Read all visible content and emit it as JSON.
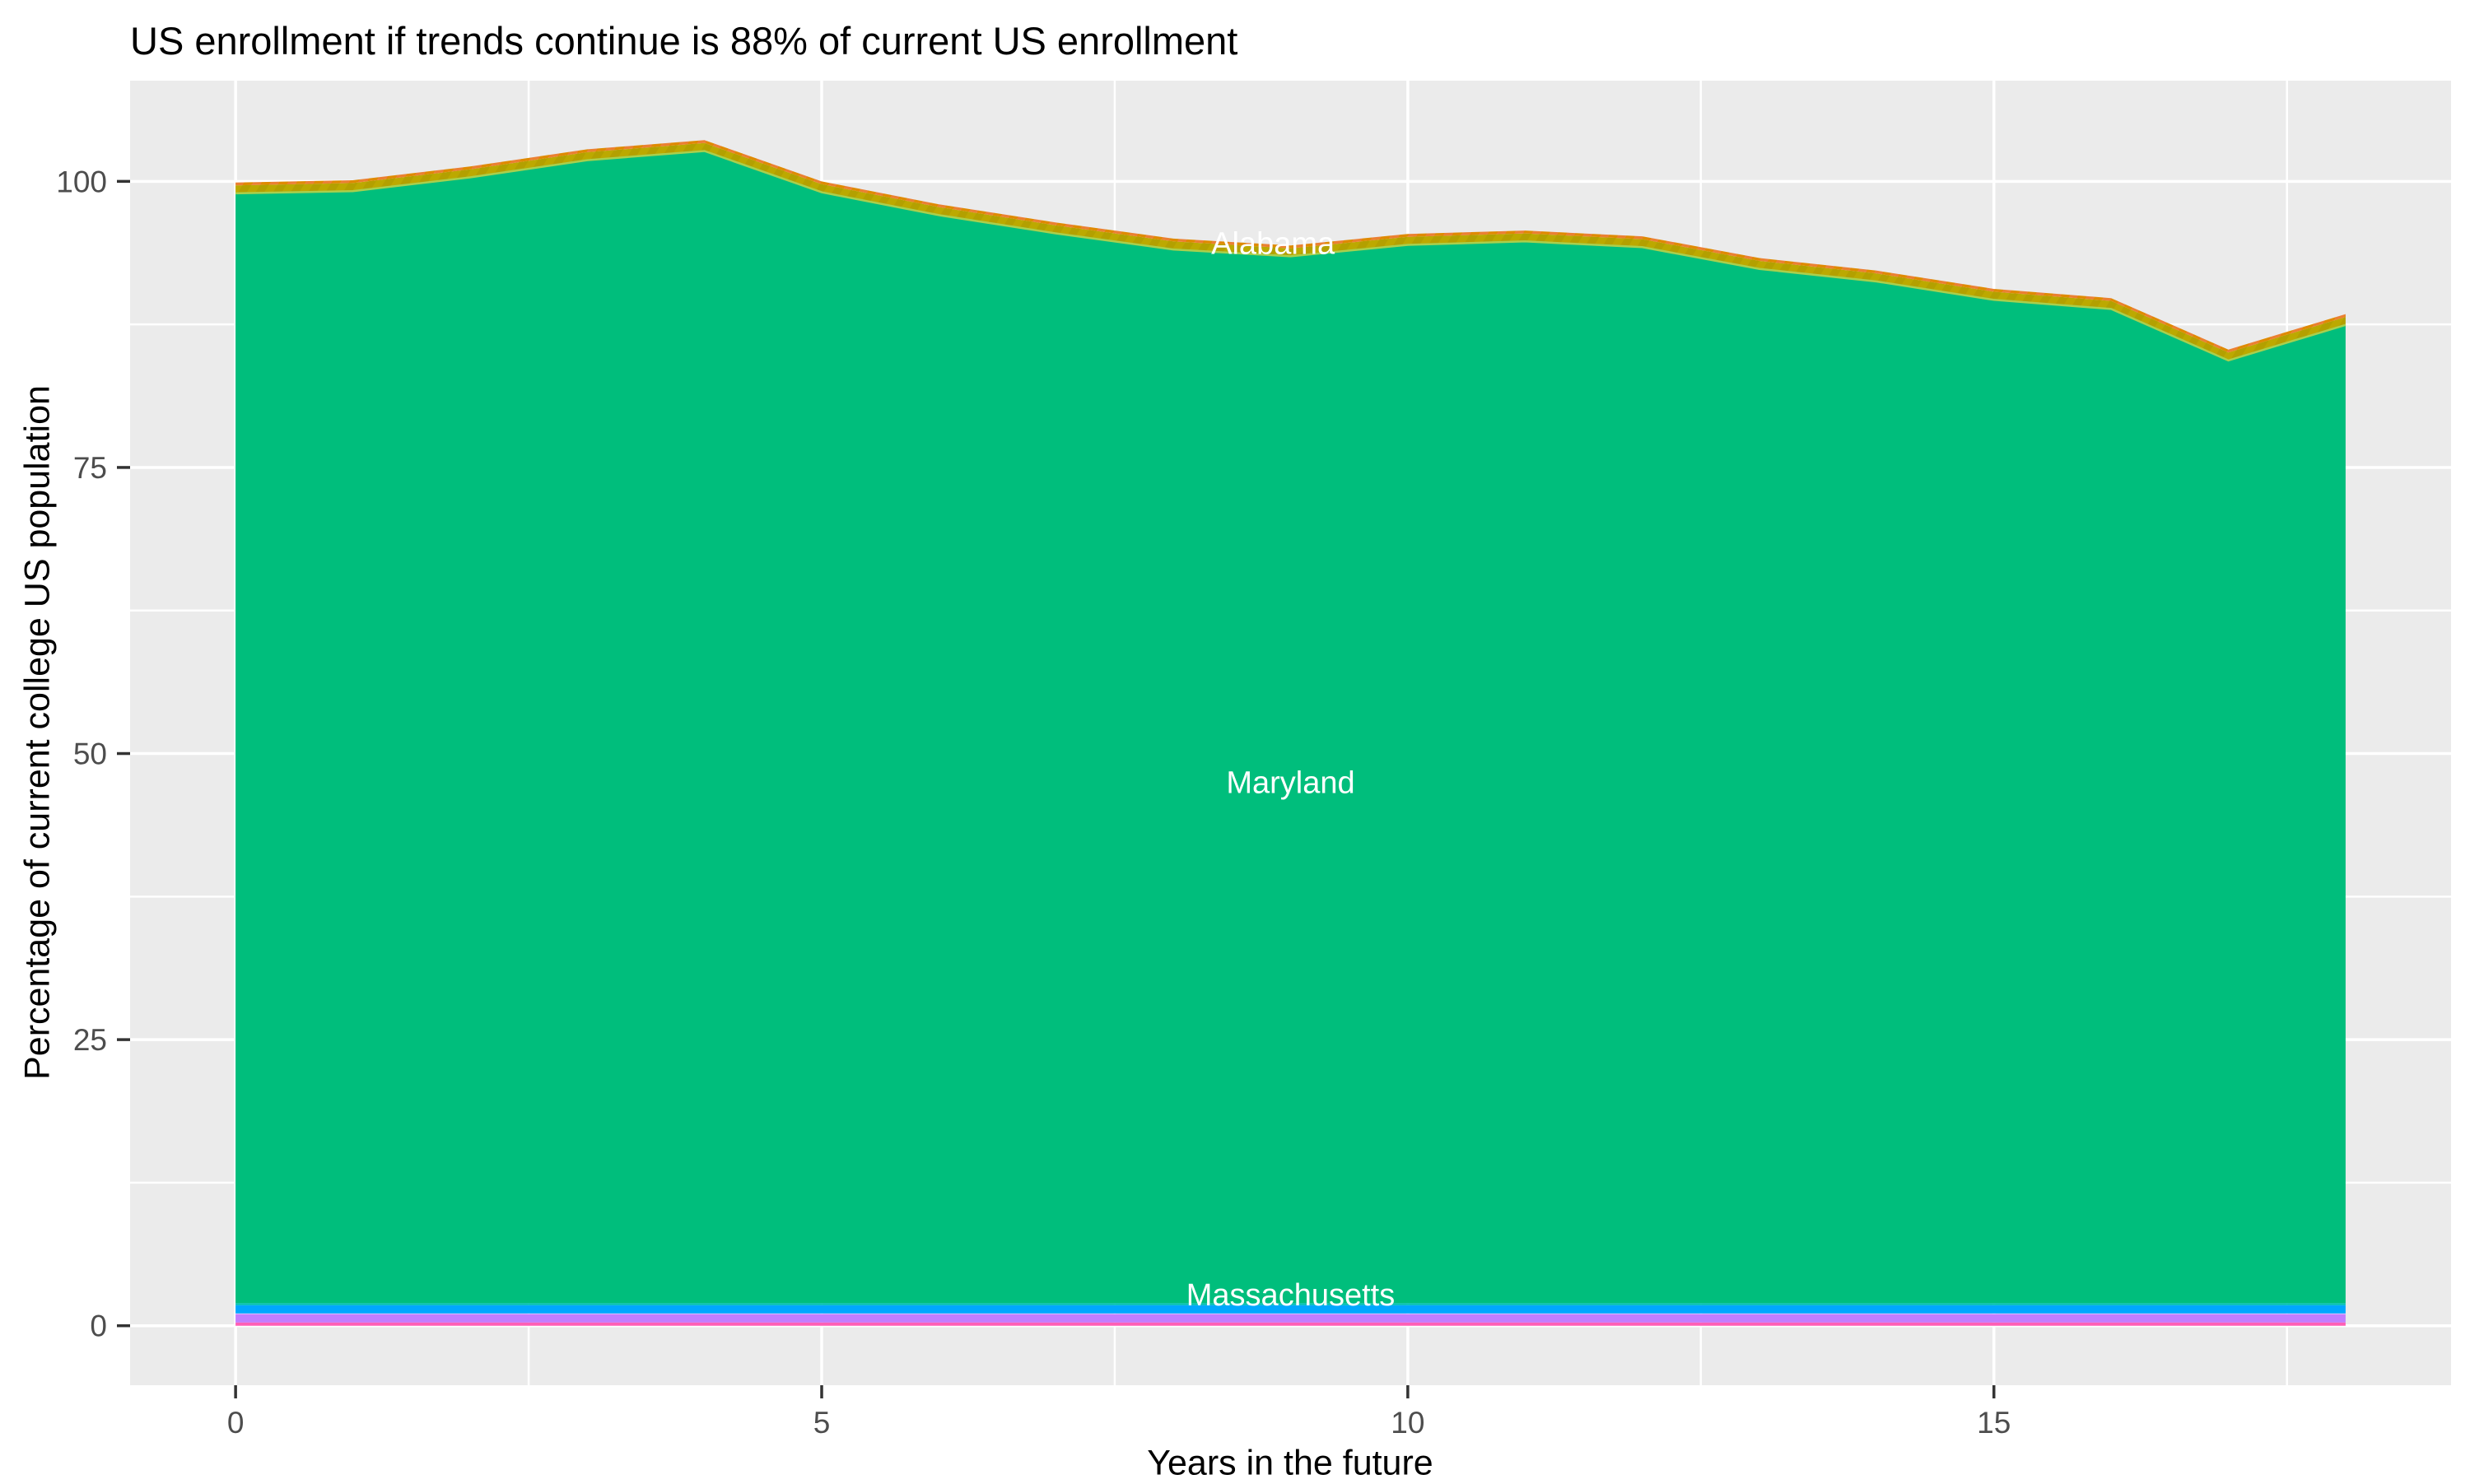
{
  "title": "US enrollment if trends continue is 88% of current US enrollment",
  "axes": {
    "x": {
      "label": "Years in the future",
      "tick_labels": [
        "0",
        "5",
        "10",
        "15"
      ]
    },
    "y": {
      "label": "Percentage of current college US population",
      "tick_labels": [
        "0",
        "25",
        "50",
        "75",
        "100"
      ]
    }
  },
  "colors": {
    "panel_background": "#EBEBEB",
    "gridline": "#FFFFFF",
    "tick_text": "#4D4D4D",
    "tick_mark": "#333333",
    "title_text": "#000000",
    "area_label_text": "#FFFFFF"
  },
  "chart_data": {
    "type": "area",
    "stacked": true,
    "title": "US enrollment if trends continue is 88% of current US enrollment",
    "xlabel": "Years in the future",
    "ylabel": "Percentage of current college US population",
    "x": [
      0,
      1,
      2,
      3,
      4,
      5,
      6,
      7,
      8,
      9,
      10,
      11,
      12,
      13,
      14,
      15,
      16,
      17,
      18
    ],
    "xlim": [
      -0.9,
      18.9
    ],
    "ylim": [
      -5.2,
      108.8
    ],
    "x_ticks": [
      0,
      5,
      10,
      15
    ],
    "y_ticks": [
      0,
      25,
      50,
      75,
      100
    ],
    "x_minor": [
      2.5,
      7.5,
      12.5,
      17.5
    ],
    "y_minor": [
      12.5,
      37.5,
      62.5,
      87.5
    ],
    "grid": true,
    "legend": false,
    "total_top_edge": [
      99.9,
      100.1,
      101.3,
      102.8,
      103.6,
      100.0,
      98.0,
      96.4,
      95.0,
      94.4,
      95.4,
      95.7,
      95.2,
      93.3,
      92.2,
      90.6,
      89.8,
      85.3,
      88.4
    ],
    "series": [
      {
        "name": "pink-band",
        "color": "#FF5FB5",
        "values": [
          0.28,
          0.28,
          0.28,
          0.28,
          0.28,
          0.28,
          0.28,
          0.28,
          0.28,
          0.28,
          0.28,
          0.28,
          0.28,
          0.28,
          0.28,
          0.28,
          0.28,
          0.28,
          0.28
        ]
      },
      {
        "name": "purple-band",
        "color": "#C17DFF",
        "values": [
          0.72,
          0.72,
          0.72,
          0.72,
          0.72,
          0.72,
          0.72,
          0.72,
          0.72,
          0.72,
          0.72,
          0.72,
          0.72,
          0.72,
          0.72,
          0.72,
          0.72,
          0.72,
          0.72
        ]
      },
      {
        "name": "lavender-line-band",
        "color": "#DCB0FF",
        "values": [
          0.08,
          0.08,
          0.08,
          0.08,
          0.08,
          0.08,
          0.08,
          0.08,
          0.08,
          0.08,
          0.08,
          0.08,
          0.08,
          0.08,
          0.08,
          0.08,
          0.08,
          0.08,
          0.08
        ]
      },
      {
        "name": "blue-band",
        "color": "#00A7FF",
        "values": [
          0.72,
          0.72,
          0.72,
          0.72,
          0.72,
          0.72,
          0.72,
          0.72,
          0.72,
          0.72,
          0.72,
          0.72,
          0.72,
          0.72,
          0.72,
          0.72,
          0.72,
          0.72,
          0.72
        ]
      },
      {
        "name": "massachusetts-teal-band",
        "color": "#00C1B3",
        "values": [
          0.18,
          0.18,
          0.18,
          0.18,
          0.18,
          0.18,
          0.18,
          0.18,
          0.18,
          0.18,
          0.18,
          0.18,
          0.18,
          0.18,
          0.18,
          0.18,
          0.18,
          0.18,
          0.18
        ]
      },
      {
        "name": "maryland-green",
        "color": "#00BE7C",
        "values": [
          96.97,
          97.17,
          98.37,
          99.87,
          100.67,
          97.07,
          95.07,
          93.47,
          92.07,
          91.47,
          92.47,
          92.77,
          92.27,
          90.37,
          89.27,
          87.67,
          86.87,
          82.37,
          85.47
        ]
      },
      {
        "name": "olive-band",
        "color": "#B5A000",
        "striped": true,
        "stripe_colors": [
          "#B3A000",
          "#BCA900"
        ],
        "values": [
          0.7,
          0.7,
          0.7,
          0.7,
          0.7,
          0.7,
          0.7,
          0.7,
          0.7,
          0.7,
          0.7,
          0.7,
          0.7,
          0.7,
          0.7,
          0.7,
          0.7,
          0.7,
          0.7
        ]
      },
      {
        "name": "alabama-orange-band",
        "color": "#E08A00",
        "striped": true,
        "stripe_colors": [
          "#DF8A00",
          "#EB8032"
        ],
        "values": [
          0.25,
          0.25,
          0.25,
          0.25,
          0.25,
          0.25,
          0.25,
          0.25,
          0.25,
          0.25,
          0.25,
          0.25,
          0.25,
          0.25,
          0.25,
          0.25,
          0.25,
          0.25,
          0.25
        ]
      }
    ],
    "boundary_line": {
      "after": "maryland-green",
      "color": "#A9CF4D",
      "width": 2.5
    },
    "area_labels": [
      {
        "text": "Alabama",
        "x": 8.85,
        "y": 94.6
      },
      {
        "text": "Maryland",
        "x": 9.0,
        "y": 47.5
      },
      {
        "text": "Massachusetts",
        "x": 9.0,
        "y": 2.7
      }
    ]
  }
}
